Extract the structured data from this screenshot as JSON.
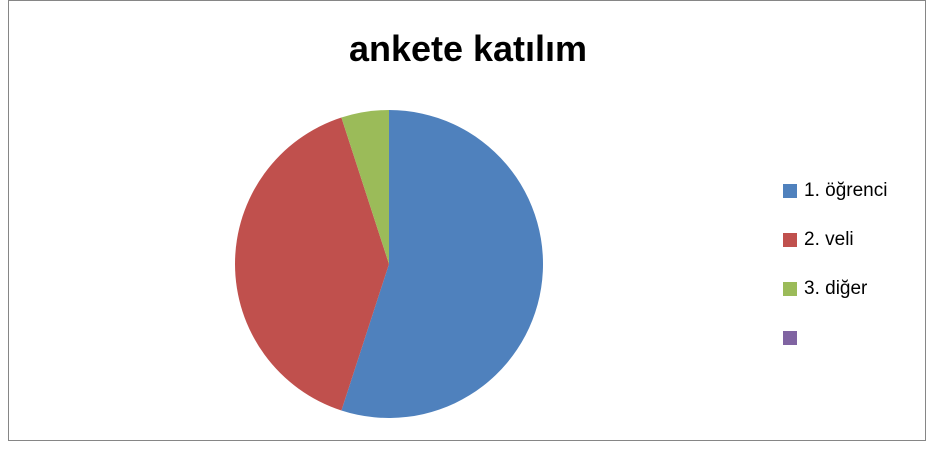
{
  "chart_data": {
    "type": "pie",
    "title": "ankete katılım",
    "categories": [
      "1. öğrenci",
      "2. veli",
      "3. diğer",
      ""
    ],
    "values": [
      55,
      40,
      5,
      0
    ],
    "colors": [
      "#4F81BD",
      "#C0504D",
      "#9BBB59",
      "#8064A2"
    ],
    "legend_position": "right"
  }
}
